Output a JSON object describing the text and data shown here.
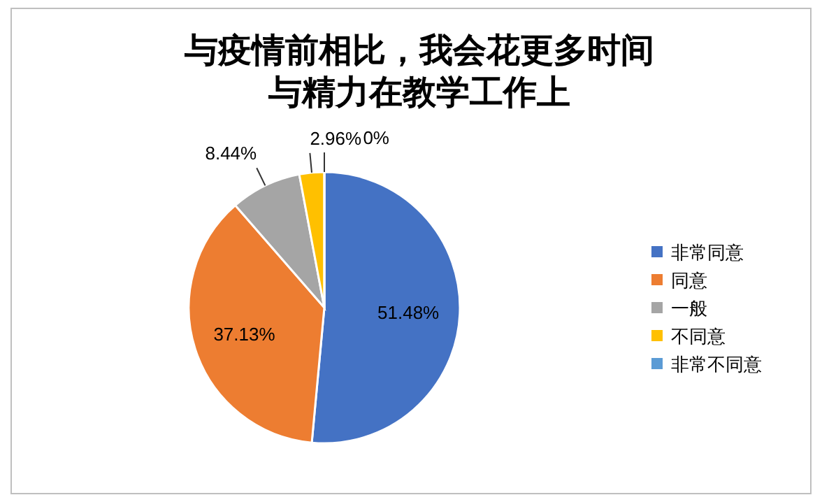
{
  "chart_data": {
    "type": "pie",
    "title": "与疫情前相比，我会花更多时间与精力在教学工作上",
    "categories": [
      "非常同意",
      "同意",
      "一般",
      "不同意",
      "非常不同意"
    ],
    "values": [
      51.48,
      37.13,
      8.44,
      2.96,
      0
    ],
    "colors": [
      "#4472c4",
      "#ed7d31",
      "#a5a5a5",
      "#ffc000",
      "#5b9bd5"
    ],
    "value_labels": [
      "51.48%",
      "37.13%",
      "8.44%",
      "2.96%",
      "0%"
    ],
    "legend": "right"
  }
}
